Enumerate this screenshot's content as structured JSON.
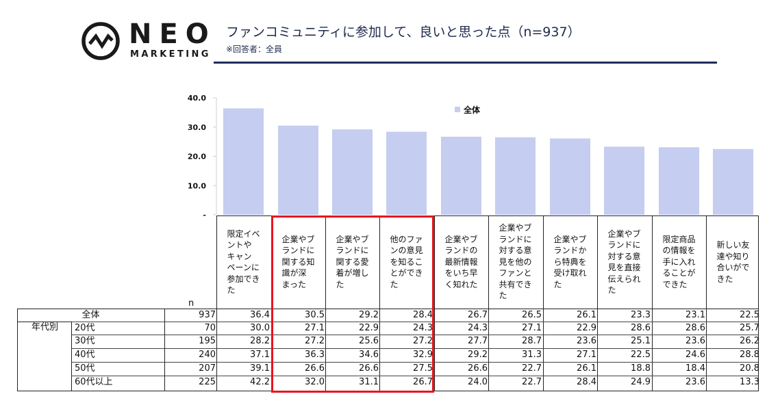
{
  "brand": {
    "name": "NEO",
    "sub": "MARKETING"
  },
  "header": {
    "title": "ファンコミュニティに参加して、良いと思った点（n=937）",
    "subtitle": "※回答者：全員"
  },
  "chart_data": {
    "type": "bar",
    "categories": [
      "限定イベントやキャンペーンに参加できた",
      "企業やブランドに関する知識が深まった",
      "企業やブランドに関する愛着が増した",
      "他のファンの意見を知ることができた",
      "企業やブランドの最新情報をいち早く知れた",
      "企業やブランドに対する意見を他のファンと共有できた",
      "企業やブランドから特典を受け取れた",
      "企業やブランドに対する意見を直接伝えられた",
      "限定商品の情報を手に入れることができた",
      "新しい友達や知り合いができた"
    ],
    "series": [
      {
        "name": "全体",
        "values": [
          36.4,
          30.5,
          29.2,
          28.4,
          26.7,
          26.5,
          26.1,
          23.3,
          23.1,
          22.5
        ],
        "color": "#c5cdf0"
      }
    ],
    "ylim": [
      0,
      40
    ],
    "yticks": [
      "-",
      "10.0",
      "20.0",
      "30.0",
      "40.0"
    ],
    "legend_position": "top-center",
    "grid": false
  },
  "table": {
    "n_label": "n",
    "col_headers": [
      [
        "限定イベ",
        "ントや",
        "キャン",
        "ペーンに",
        "参加でき",
        "た"
      ],
      [
        "企業やブ",
        "ランドに",
        "関する知",
        "識が深",
        "まった"
      ],
      [
        "企業やブ",
        "ランドに",
        "関する愛",
        "着が増し",
        "た"
      ],
      [
        "他のファ",
        "ンの意見",
        "を知るこ",
        "とができ",
        "た"
      ],
      [
        "企業やブ",
        "ランドの",
        "最新情報",
        "をいち早",
        "く知れた"
      ],
      [
        "企業やブ",
        "ランドに",
        "対する意",
        "見を他の",
        "ファンと",
        "共有でき",
        "た"
      ],
      [
        "企業やブ",
        "ランドか",
        "ら特典を",
        "受け取れ",
        "た"
      ],
      [
        "企業やブ",
        "ランドに",
        "対する意",
        "見を直接",
        "伝えられ",
        "た"
      ],
      [
        "限定商品",
        "の情報を",
        "手に入れ",
        "ることが",
        "できた"
      ],
      [
        "新しい友",
        "達や知り",
        "合いがで",
        "きた"
      ]
    ],
    "group_label": "年代別",
    "rows": [
      {
        "label": "全体",
        "n": "937",
        "values": [
          "36.4",
          "30.5",
          "29.2",
          "28.4",
          "26.7",
          "26.5",
          "26.1",
          "23.3",
          "23.1",
          "22.5"
        ]
      },
      {
        "label": "20代",
        "n": "70",
        "values": [
          "30.0",
          "27.1",
          "22.9",
          "24.3",
          "24.3",
          "27.1",
          "22.9",
          "28.6",
          "28.6",
          "25.7"
        ]
      },
      {
        "label": "30代",
        "n": "195",
        "values": [
          "28.2",
          "27.2",
          "25.6",
          "27.2",
          "27.7",
          "28.7",
          "23.6",
          "25.1",
          "23.6",
          "26.2"
        ]
      },
      {
        "label": "40代",
        "n": "240",
        "values": [
          "37.1",
          "36.3",
          "34.6",
          "32.9",
          "29.2",
          "31.3",
          "27.1",
          "22.5",
          "24.6",
          "28.8"
        ]
      },
      {
        "label": "50代",
        "n": "207",
        "values": [
          "39.1",
          "26.6",
          "26.6",
          "27.5",
          "26.6",
          "22.7",
          "26.1",
          "18.8",
          "18.4",
          "20.8"
        ]
      },
      {
        "label": "60代以上",
        "n": "225",
        "values": [
          "42.2",
          "32.0",
          "31.1",
          "26.7",
          "24.0",
          "22.7",
          "28.4",
          "24.9",
          "23.6",
          "13.3"
        ]
      }
    ]
  }
}
